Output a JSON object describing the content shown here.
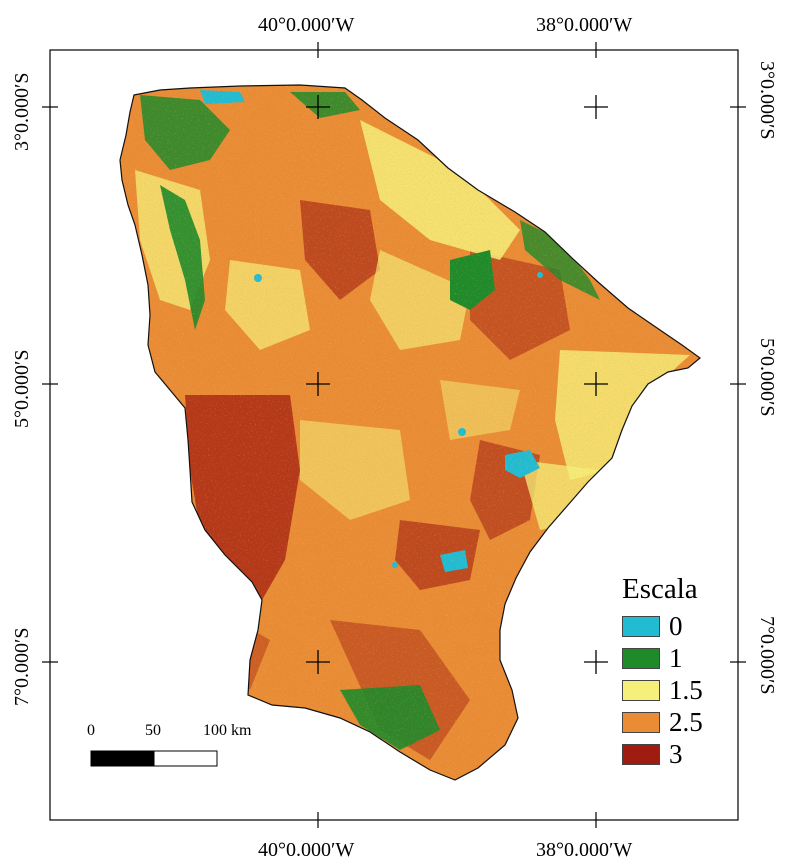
{
  "map": {
    "legend": {
      "title": "Escala",
      "items": [
        {
          "label": "0",
          "color": "#22bcd2"
        },
        {
          "label": "1",
          "color": "#1e8a2a"
        },
        {
          "label": "1.5",
          "color": "#f6f07a"
        },
        {
          "label": "2.5",
          "color": "#e98c35"
        },
        {
          "label": "3",
          "color": "#a11c10"
        }
      ]
    },
    "graticule": {
      "top_labels": [
        "40°0.000′W",
        "38°0.000′W"
      ],
      "bottom_labels": [
        "40°0.000′W",
        "38°0.000′W"
      ],
      "left_labels": [
        "3°0.000′S",
        "5°0.000′S",
        "7°0.000′S"
      ],
      "right_labels": [
        "3°0.000′S",
        "5°0.000′S",
        "7°0.000′S"
      ]
    },
    "scale_bar": {
      "ticks": [
        "0",
        "50",
        "100 km"
      ]
    }
  }
}
